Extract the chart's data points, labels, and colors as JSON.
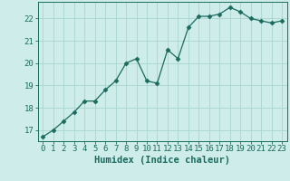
{
  "x": [
    0,
    1,
    2,
    3,
    4,
    5,
    6,
    7,
    8,
    9,
    10,
    11,
    12,
    13,
    14,
    15,
    16,
    17,
    18,
    19,
    20,
    21,
    22,
    23
  ],
  "y": [
    16.7,
    17.0,
    17.4,
    17.8,
    18.3,
    18.3,
    18.8,
    19.2,
    20.0,
    20.2,
    19.2,
    19.1,
    20.6,
    20.2,
    21.6,
    22.1,
    22.1,
    22.2,
    22.5,
    22.3,
    22.0,
    21.9,
    21.8,
    21.9
  ],
  "line_color": "#1a6b5e",
  "marker": "D",
  "marker_size": 2.5,
  "bg_color": "#ceecea",
  "grid_color": "#aad4d0",
  "xlabel": "Humidex (Indice chaleur)",
  "xlim": [
    -0.5,
    23.5
  ],
  "ylim": [
    16.5,
    22.75
  ],
  "yticks": [
    17,
    18,
    19,
    20,
    21,
    22
  ],
  "xticks": [
    0,
    1,
    2,
    3,
    4,
    5,
    6,
    7,
    8,
    9,
    10,
    11,
    12,
    13,
    14,
    15,
    16,
    17,
    18,
    19,
    20,
    21,
    22,
    23
  ],
  "font_color": "#1a6b5e",
  "tick_fontsize": 6.5,
  "label_fontsize": 7.5
}
